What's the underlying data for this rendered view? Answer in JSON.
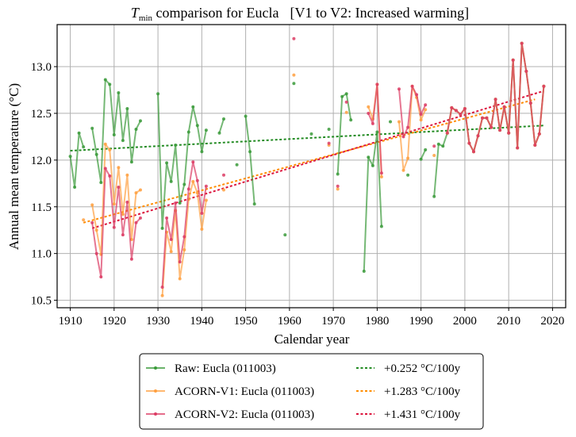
{
  "chart_data": {
    "type": "line",
    "title": {
      "var_main": "T",
      "var_sub": "min",
      "text": " comparison for Eucla",
      "bracket": "[V1 to V2: Increased warming]"
    },
    "xlabel": "Calendar year",
    "ylabel": "Annual mean temperature (°C)",
    "xlim": [
      1907,
      2023
    ],
    "ylim": [
      10.42,
      13.45
    ],
    "xticks": [
      1910,
      1920,
      1930,
      1940,
      1950,
      1960,
      1970,
      1980,
      1990,
      2000,
      2010,
      2020
    ],
    "yticks": [
      10.5,
      11.0,
      11.5,
      12.0,
      12.5,
      13.0
    ],
    "ytick_labels": [
      "10.5",
      "11.0",
      "11.5",
      "12.0",
      "12.5",
      "13.0"
    ],
    "grid": true,
    "legend_position": "below-center",
    "series": [
      {
        "name": "Raw: Eucla (011003)",
        "color": "#3a9a3a",
        "points": [
          [
            1910,
            12.04
          ],
          [
            1911,
            11.71
          ],
          [
            1912,
            12.29
          ],
          [
            1913,
            12.14
          ],
          [
            1914,
            null
          ],
          [
            1915,
            12.34
          ],
          [
            1916,
            12.06
          ],
          [
            1917,
            11.76
          ],
          [
            1918,
            12.86
          ],
          [
            1919,
            12.81
          ],
          [
            1920,
            12.27
          ],
          [
            1921,
            12.72
          ],
          [
            1922,
            12.21
          ],
          [
            1923,
            12.55
          ],
          [
            1924,
            11.98
          ],
          [
            1925,
            12.33
          ],
          [
            1926,
            12.42
          ],
          [
            1927,
            null
          ],
          [
            1930,
            12.71
          ],
          [
            1931,
            11.27
          ],
          [
            1932,
            11.97
          ],
          [
            1933,
            11.77
          ],
          [
            1934,
            12.16
          ],
          [
            1935,
            11.54
          ],
          [
            1936,
            11.74
          ],
          [
            1937,
            12.3
          ],
          [
            1938,
            12.57
          ],
          [
            1939,
            12.37
          ],
          [
            1940,
            12.09
          ],
          [
            1941,
            12.32
          ],
          [
            1942,
            null
          ],
          [
            1944,
            12.29
          ],
          [
            1945,
            12.44
          ],
          [
            1946,
            null
          ],
          [
            1948,
            11.95
          ],
          [
            1949,
            null
          ],
          [
            1950,
            12.47
          ],
          [
            1951,
            12.09
          ],
          [
            1952,
            11.53
          ],
          [
            1953,
            null
          ],
          [
            1959,
            11.2
          ],
          [
            1960,
            null
          ],
          [
            1961,
            12.82
          ],
          [
            1962,
            null
          ],
          [
            1965,
            12.28
          ],
          [
            1966,
            null
          ],
          [
            1969,
            12.33
          ],
          [
            1970,
            null
          ],
          [
            1971,
            11.85
          ],
          [
            1972,
            12.68
          ],
          [
            1973,
            12.71
          ],
          [
            1974,
            12.43
          ],
          [
            1975,
            null
          ],
          [
            1977,
            10.81
          ],
          [
            1978,
            12.03
          ],
          [
            1979,
            11.94
          ],
          [
            1980,
            12.3
          ],
          [
            1981,
            11.29
          ],
          [
            1982,
            null
          ],
          [
            1983,
            12.41
          ],
          [
            1984,
            null
          ],
          [
            1987,
            11.84
          ],
          [
            1988,
            null
          ],
          [
            1990,
            12.01
          ],
          [
            1991,
            12.11
          ],
          [
            1992,
            null
          ],
          [
            1993,
            11.61
          ],
          [
            1994,
            12.17
          ],
          [
            1995,
            12.15
          ],
          [
            1996,
            12.29
          ],
          [
            1997,
            12.56
          ],
          [
            1998,
            12.53
          ],
          [
            1999,
            12.49
          ],
          [
            2000,
            12.55
          ],
          [
            2001,
            12.18
          ],
          [
            2002,
            12.09
          ],
          [
            2003,
            12.26
          ],
          [
            2004,
            12.45
          ],
          [
            2005,
            12.45
          ],
          [
            2006,
            12.35
          ],
          [
            2007,
            12.65
          ],
          [
            2008,
            12.32
          ],
          [
            2009,
            12.57
          ],
          [
            2010,
            12.29
          ],
          [
            2011,
            13.07
          ],
          [
            2012,
            12.13
          ],
          [
            2013,
            13.25
          ],
          [
            2014,
            12.95
          ],
          [
            2015,
            12.61
          ],
          [
            2016,
            12.16
          ],
          [
            2017,
            12.28
          ],
          [
            2018,
            12.79
          ]
        ]
      },
      {
        "name": "ACORN-V1: Eucla (011003)",
        "color": "#ffa040",
        "points": [
          [
            1913,
            11.36
          ],
          [
            1914,
            null
          ],
          [
            1915,
            11.52
          ],
          [
            1916,
            11.25
          ],
          [
            1917,
            10.99
          ],
          [
            1918,
            12.17
          ],
          [
            1919,
            12.11
          ],
          [
            1920,
            11.53
          ],
          [
            1921,
            11.92
          ],
          [
            1922,
            11.42
          ],
          [
            1923,
            11.84
          ],
          [
            1924,
            11.15
          ],
          [
            1925,
            11.65
          ],
          [
            1926,
            11.68
          ],
          [
            1927,
            null
          ],
          [
            1931,
            10.55
          ],
          [
            1932,
            11.23
          ],
          [
            1933,
            11.02
          ],
          [
            1934,
            11.46
          ],
          [
            1935,
            10.73
          ],
          [
            1936,
            11.04
          ],
          [
            1937,
            11.58
          ],
          [
            1938,
            11.77
          ],
          [
            1939,
            11.65
          ],
          [
            1940,
            11.26
          ],
          [
            1941,
            11.57
          ],
          [
            1942,
            null
          ],
          [
            1945,
            11.68
          ],
          [
            1946,
            null
          ],
          [
            1961,
            12.91
          ],
          [
            1962,
            null
          ],
          [
            1969,
            12.16
          ],
          [
            1970,
            null
          ],
          [
            1971,
            11.69
          ],
          [
            1972,
            null
          ],
          [
            1973,
            12.51
          ],
          [
            1974,
            null
          ],
          [
            1978,
            12.57
          ],
          [
            1979,
            12.44
          ],
          [
            1980,
            12.81
          ],
          [
            1981,
            11.82
          ],
          [
            1982,
            null
          ],
          [
            1985,
            12.41
          ],
          [
            1986,
            11.89
          ],
          [
            1987,
            12.02
          ],
          [
            1988,
            12.79
          ],
          [
            1989,
            12.67
          ],
          [
            1990,
            12.43
          ],
          [
            1991,
            12.54
          ],
          [
            1992,
            null
          ],
          [
            1993,
            12.05
          ],
          [
            1994,
            null
          ],
          [
            1996,
            12.29
          ],
          [
            1997,
            12.56
          ],
          [
            1998,
            12.53
          ],
          [
            1999,
            12.49
          ],
          [
            2000,
            12.55
          ],
          [
            2001,
            12.18
          ],
          [
            2002,
            12.09
          ],
          [
            2003,
            12.26
          ],
          [
            2004,
            12.45
          ],
          [
            2005,
            12.45
          ],
          [
            2006,
            12.35
          ],
          [
            2007,
            12.65
          ],
          [
            2008,
            12.32
          ],
          [
            2009,
            12.57
          ],
          [
            2010,
            12.29
          ],
          [
            2011,
            13.07
          ],
          [
            2012,
            12.13
          ],
          [
            2013,
            13.25
          ],
          [
            2014,
            12.95
          ],
          [
            2015,
            12.61
          ],
          [
            2016,
            12.16
          ],
          [
            2017,
            12.28
          ],
          [
            2018,
            12.79
          ]
        ]
      },
      {
        "name": "ACORN-V2: Eucla (011003)",
        "color": "#dc3c64",
        "points": [
          [
            1915,
            11.33
          ],
          [
            1916,
            11.0
          ],
          [
            1917,
            10.75
          ],
          [
            1918,
            11.91
          ],
          [
            1919,
            11.83
          ],
          [
            1920,
            11.28
          ],
          [
            1921,
            11.71
          ],
          [
            1922,
            11.2
          ],
          [
            1923,
            11.55
          ],
          [
            1924,
            10.94
          ],
          [
            1925,
            11.33
          ],
          [
            1926,
            11.38
          ],
          [
            1927,
            null
          ],
          [
            1931,
            10.64
          ],
          [
            1932,
            11.38
          ],
          [
            1933,
            11.15
          ],
          [
            1934,
            11.54
          ],
          [
            1935,
            10.91
          ],
          [
            1936,
            11.18
          ],
          [
            1937,
            11.69
          ],
          [
            1938,
            11.98
          ],
          [
            1939,
            11.78
          ],
          [
            1940,
            11.43
          ],
          [
            1941,
            11.72
          ],
          [
            1942,
            null
          ],
          [
            1945,
            11.84
          ],
          [
            1946,
            null
          ],
          [
            1961,
            13.3
          ],
          [
            1962,
            null
          ],
          [
            1969,
            12.18
          ],
          [
            1970,
            null
          ],
          [
            1971,
            11.72
          ],
          [
            1972,
            null
          ],
          [
            1973,
            12.62
          ],
          [
            1974,
            null
          ],
          [
            1978,
            12.5
          ],
          [
            1979,
            12.39
          ],
          [
            1980,
            12.81
          ],
          [
            1981,
            11.86
          ],
          [
            1982,
            null
          ],
          [
            1985,
            12.76
          ],
          [
            1986,
            12.25
          ],
          [
            1987,
            12.35
          ],
          [
            1988,
            12.79
          ],
          [
            1989,
            12.7
          ],
          [
            1990,
            12.49
          ],
          [
            1991,
            12.59
          ],
          [
            1992,
            null
          ],
          [
            1993,
            12.15
          ],
          [
            1994,
            null
          ],
          [
            1996,
            12.29
          ],
          [
            1997,
            12.56
          ],
          [
            1998,
            12.53
          ],
          [
            1999,
            12.49
          ],
          [
            2000,
            12.55
          ],
          [
            2001,
            12.18
          ],
          [
            2002,
            12.09
          ],
          [
            2003,
            12.26
          ],
          [
            2004,
            12.45
          ],
          [
            2005,
            12.45
          ],
          [
            2006,
            12.35
          ],
          [
            2007,
            12.65
          ],
          [
            2008,
            12.32
          ],
          [
            2009,
            12.57
          ],
          [
            2010,
            12.29
          ],
          [
            2011,
            13.07
          ],
          [
            2012,
            12.13
          ],
          [
            2013,
            13.25
          ],
          [
            2014,
            12.95
          ],
          [
            2015,
            12.61
          ],
          [
            2016,
            12.16
          ],
          [
            2017,
            12.28
          ],
          [
            2018,
            12.79
          ]
        ]
      }
    ],
    "trends": [
      {
        "name": "+0.252 °C/100y",
        "color": "#228b22",
        "x": [
          1910,
          2018
        ],
        "y": [
          12.1,
          12.37
        ]
      },
      {
        "name": "+1.283 °C/100y",
        "color": "#ff8c00",
        "x": [
          1913,
          2016
        ],
        "y": [
          11.33,
          12.65
        ]
      },
      {
        "name": "+1.431 °C/100y",
        "color": "#dc143c",
        "x": [
          1915,
          2018
        ],
        "y": [
          11.27,
          12.74
        ]
      }
    ],
    "legend": {
      "left": [
        {
          "label": "Raw: Eucla (011003)",
          "color": "#3a9a3a"
        },
        {
          "label": "ACORN-V1: Eucla (011003)",
          "color": "#ffa040"
        },
        {
          "label": "ACORN-V2: Eucla (011003)",
          "color": "#dc3c64"
        }
      ],
      "right": [
        {
          "label": "+0.252 °C/100y",
          "color": "#228b22"
        },
        {
          "label": "+1.283 °C/100y",
          "color": "#ff8c00"
        },
        {
          "label": "+1.431 °C/100y",
          "color": "#dc143c"
        }
      ]
    }
  }
}
